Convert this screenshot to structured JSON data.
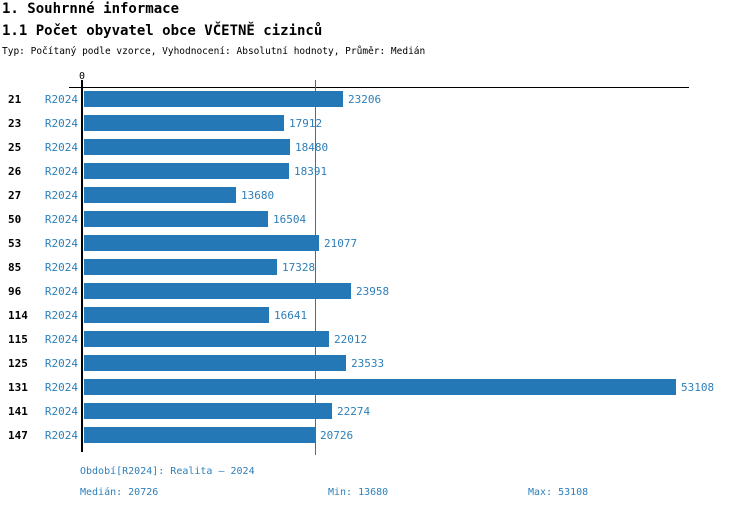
{
  "header": {
    "title": "1. Souhrnné informace",
    "subtitle": "1.1 Počet obyvatel obce VČETNĚ cizinců",
    "meta": "Typ: Počítaný podle vzorce, Vyhodnocení: Absolutní hodnoty, Průměr: Medián"
  },
  "chart_data": {
    "type": "bar",
    "orientation": "horizontal",
    "title": "1.1 Počet obyvatel obce VČETNĚ cizinců",
    "categories": [
      "21",
      "23",
      "25",
      "26",
      "27",
      "50",
      "53",
      "85",
      "96",
      "114",
      "115",
      "125",
      "131",
      "141",
      "147"
    ],
    "series": [
      {
        "name": "R2024",
        "values": [
          23206,
          17912,
          18480,
          18391,
          13680,
          16504,
          21077,
          17328,
          23958,
          16641,
          22012,
          23533,
          53108,
          22274,
          20726
        ]
      }
    ],
    "value_labels_shown": true,
    "axis": {
      "x_min": 0,
      "x_tick_labels": [
        "0"
      ],
      "grid": false
    },
    "median_line_value": 20726,
    "stats": {
      "median": 20726,
      "min": 13680,
      "max": 53108
    },
    "colors": {
      "bar": "#2478b5",
      "label_text": "#2d7fba",
      "axis": "#000000"
    }
  },
  "footer": {
    "period": "Období[R2024]: Realita – 2024",
    "median": "Medián: 20726",
    "min": "Min: 13680",
    "max": "Max: 53108"
  }
}
